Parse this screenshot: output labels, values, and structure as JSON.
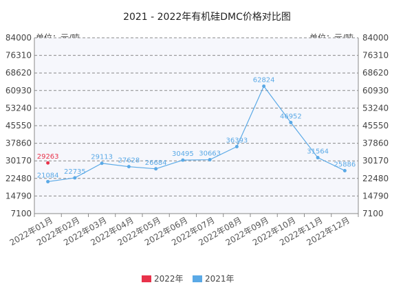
{
  "chart_data": {
    "type": "line",
    "title": "2021 - 2022年有机硅DMC价格对比图",
    "unit_label_left": "单位：元/吨",
    "unit_label_right": "单位：元/吨",
    "categories": [
      "2022年01月",
      "2022年02月",
      "2022年03月",
      "2022年04月",
      "2022年05月",
      "2022年06月",
      "2022年07月",
      "2022年08月",
      "2022年09月",
      "2022年10月",
      "2022年11月",
      "2022年12月"
    ],
    "y_ticks": [
      7100,
      14790,
      22480,
      30170,
      37860,
      45550,
      53240,
      60930,
      68620,
      76310,
      84000
    ],
    "ylim": [
      7100,
      84000
    ],
    "grid": true,
    "legend_position": "bottom",
    "series": [
      {
        "name": "2022年",
        "color": "#e8324a",
        "values": [
          29263,
          null,
          null,
          null,
          null,
          null,
          null,
          null,
          null,
          null,
          null,
          null
        ]
      },
      {
        "name": "2021年",
        "color": "#5aa9e6",
        "values": [
          21084,
          22735,
          29113,
          27628,
          26684,
          30495,
          30663,
          36393,
          62824,
          46952,
          31564,
          25886
        ]
      }
    ]
  }
}
